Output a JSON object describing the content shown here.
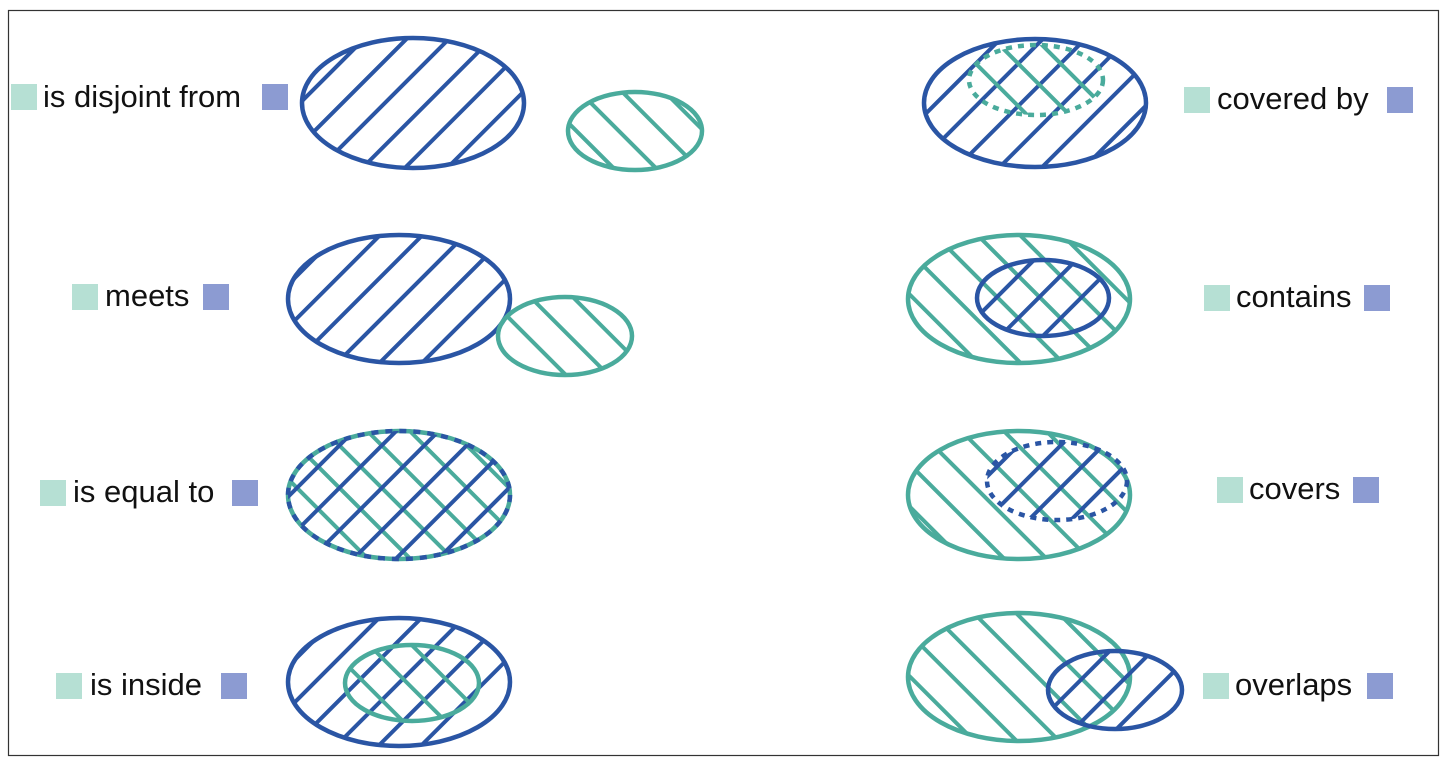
{
  "colors": {
    "teal": "#4aab9c",
    "blue": "#2a55a4",
    "swatch_teal": "#b6e0d4",
    "swatch_blue": "#8c9bd2",
    "frame": "#333333"
  },
  "relations": {
    "disjoint": "is disjoint from",
    "meets": "meets",
    "equal": "is equal to",
    "inside": "is inside",
    "covered_by": "covered by",
    "contains": "contains",
    "covers": "covers",
    "overlaps": "overlaps"
  }
}
